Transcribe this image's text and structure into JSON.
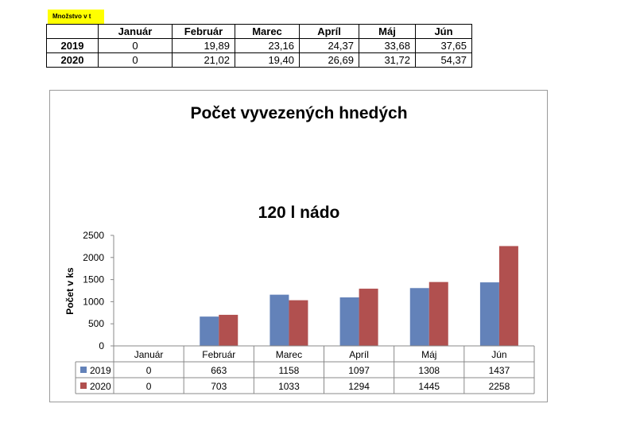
{
  "qty_table": {
    "label": "Množstvo v t",
    "months": [
      "Január",
      "Február",
      "Marec",
      "Apríl",
      "Máj",
      "Jún"
    ],
    "rows": [
      {
        "year": "2019",
        "values": [
          "0",
          "19,89",
          "23,16",
          "24,37",
          "33,68",
          "37,65"
        ]
      },
      {
        "year": "2020",
        "values": [
          "0",
          "21,02",
          "19,40",
          "26,69",
          "31,72",
          "54,37"
        ]
      }
    ]
  },
  "chart_data": {
    "type": "bar",
    "title": "Počet vyvezených hnedých",
    "subtitle": "120 l nádo",
    "ylabel": "Počet v ks",
    "xlabel": "",
    "categories": [
      "Január",
      "Február",
      "Marec",
      "Apríl",
      "Máj",
      "Jún"
    ],
    "ylim": [
      0,
      2500
    ],
    "yticks": [
      0,
      500,
      1000,
      1500,
      2000,
      2500
    ],
    "grid": false,
    "legend": "data-table-below",
    "series": [
      {
        "name": "2019",
        "color": "#6382b9",
        "values": [
          0,
          663,
          1158,
          1097,
          1308,
          1437
        ]
      },
      {
        "name": "2020",
        "color": "#b1504f",
        "values": [
          0,
          703,
          1033,
          1294,
          1445,
          2258
        ]
      }
    ]
  }
}
